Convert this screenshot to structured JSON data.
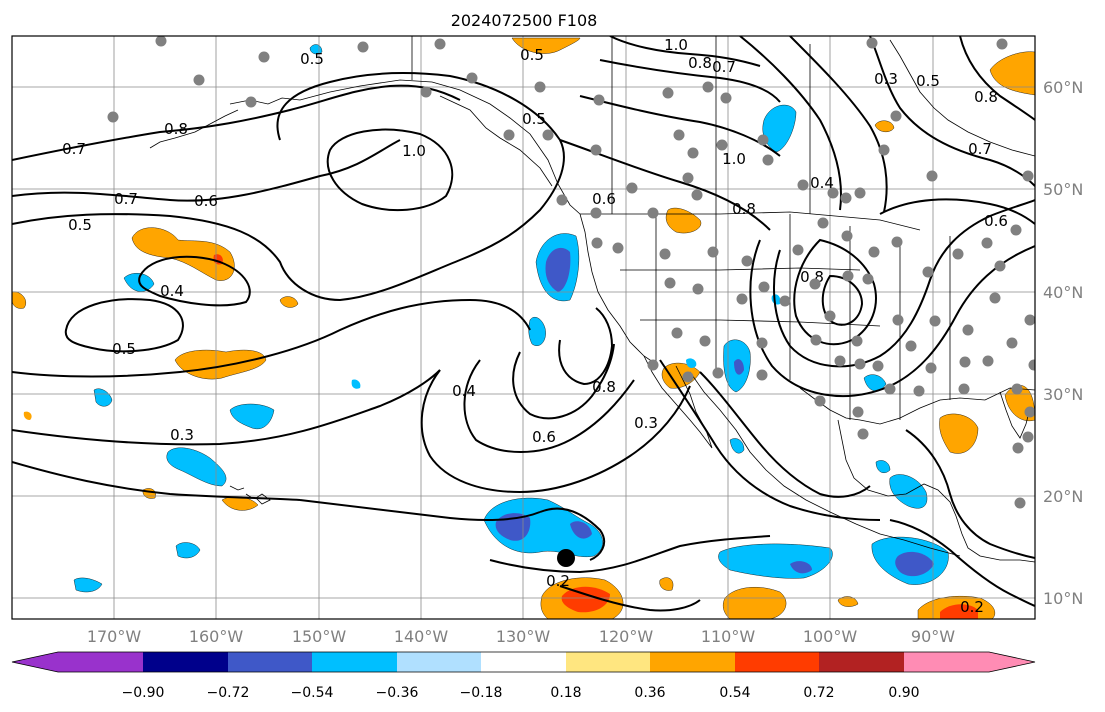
{
  "title": "2024072500 F108",
  "map": {
    "lon_labels": [
      "170°W",
      "160°W",
      "150°W",
      "140°W",
      "130°W",
      "120°W",
      "110°W",
      "100°W",
      "90°W"
    ],
    "lat_labels": [
      "60°N",
      "50°N",
      "40°N",
      "30°N",
      "20°N",
      "10°N"
    ],
    "contour_labels": [
      "1.0",
      "0.8",
      "0.7",
      "0.5",
      "0.5",
      "0.5",
      "0.8",
      "0.7",
      "1.0",
      "0.7",
      "0.6",
      "0.5",
      "0.4",
      "0.5",
      "0.3",
      "0.4",
      "0.6",
      "0.8",
      "0.3",
      "0.2",
      "0.2",
      "0.8",
      "1.0",
      "0.8",
      "0.3",
      "0.5",
      "0.8",
      "0.7",
      "0.6",
      "0.4",
      "0.6"
    ],
    "anomaly_colors": {
      "neg_strong": "#3f58c8",
      "neg": "#00bfff",
      "neg_weak": "#b0e0ff",
      "pos_weak": "#ffe680",
      "pos": "#ffa500",
      "pos_strong": "#ff3c00"
    }
  },
  "colorbar": {
    "ticks": [
      "−0.90",
      "−0.72",
      "−0.54",
      "−0.36",
      "−0.18",
      "0.18",
      "0.36",
      "0.54",
      "0.72",
      "0.90"
    ],
    "colors": [
      "#9932cc",
      "#00008b",
      "#3f58c8",
      "#00bfff",
      "#b0e0ff",
      "#ffffff",
      "#ffe680",
      "#ffa500",
      "#ff3c00",
      "#b22222",
      "#ff8cb4",
      "#ff8cb4"
    ]
  }
}
